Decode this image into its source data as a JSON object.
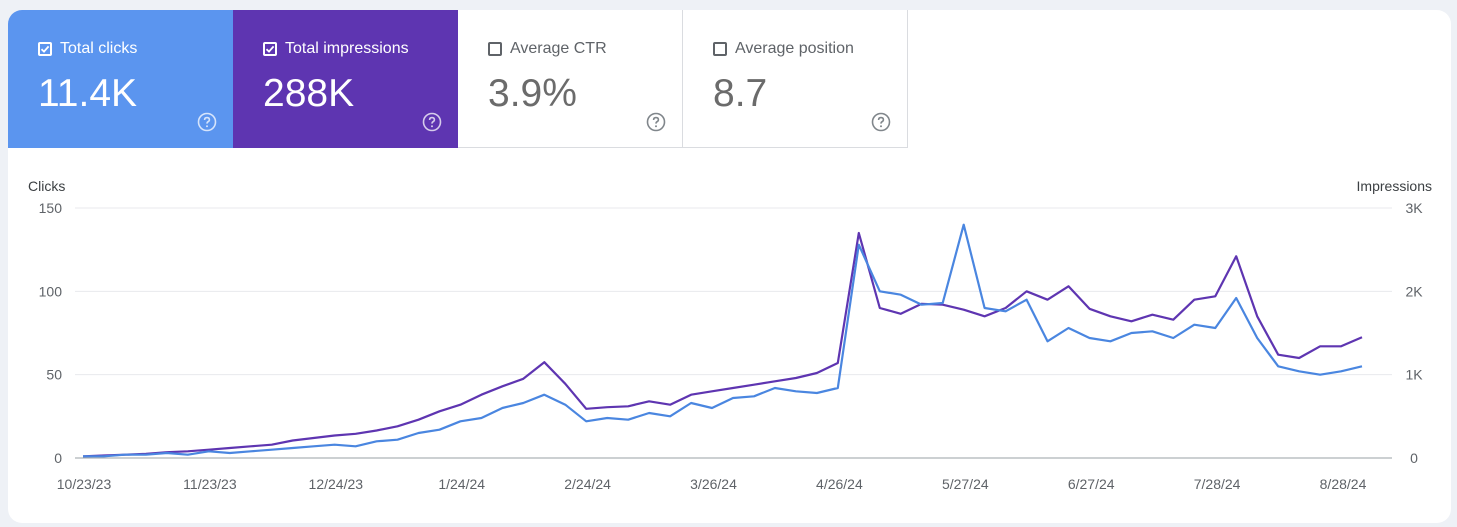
{
  "metrics": [
    {
      "label": "Total clicks",
      "value": "11.4K",
      "checked": true,
      "color": "#5b95ef"
    },
    {
      "label": "Total impressions",
      "value": "288K",
      "checked": true,
      "color": "#5e35b1"
    },
    {
      "label": "Average CTR",
      "value": "3.9%",
      "checked": false,
      "color": "#ffffff"
    },
    {
      "label": "Average position",
      "value": "8.7",
      "checked": false,
      "color": "#ffffff"
    }
  ],
  "chart_data": {
    "type": "line",
    "left_axis": {
      "title": "Clicks",
      "ticks": [
        "150",
        "100",
        "50",
        "0"
      ],
      "range": [
        0,
        150
      ]
    },
    "right_axis": {
      "title": "Impressions",
      "ticks": [
        "3K",
        "2K",
        "1K",
        "0"
      ],
      "range": [
        0,
        3000
      ]
    },
    "x_ticks": [
      "10/23/23",
      "11/23/23",
      "12/24/23",
      "1/24/24",
      "2/24/24",
      "3/26/24",
      "4/26/24",
      "5/27/24",
      "6/27/24",
      "7/28/24",
      "8/28/24"
    ],
    "grid": true,
    "series": [
      {
        "name": "Clicks",
        "axis": "left",
        "color": "#4a86e0",
        "points": [
          [
            0,
            1
          ],
          [
            7,
            1
          ],
          [
            14,
            2
          ],
          [
            21,
            2
          ],
          [
            28,
            3
          ],
          [
            35,
            2
          ],
          [
            42,
            4
          ],
          [
            49,
            3
          ],
          [
            56,
            4
          ],
          [
            63,
            5
          ],
          [
            70,
            6
          ],
          [
            77,
            7
          ],
          [
            84,
            8
          ],
          [
            91,
            7
          ],
          [
            98,
            10
          ],
          [
            105,
            11
          ],
          [
            112,
            15
          ],
          [
            119,
            17
          ],
          [
            126,
            22
          ],
          [
            133,
            24
          ],
          [
            140,
            30
          ],
          [
            147,
            33
          ],
          [
            154,
            38
          ],
          [
            161,
            32
          ],
          [
            168,
            22
          ],
          [
            175,
            24
          ],
          [
            182,
            23
          ],
          [
            189,
            27
          ],
          [
            196,
            25
          ],
          [
            203,
            33
          ],
          [
            210,
            30
          ],
          [
            217,
            36
          ],
          [
            224,
            37
          ],
          [
            231,
            42
          ],
          [
            238,
            40
          ],
          [
            245,
            39
          ],
          [
            252,
            42
          ],
          [
            259,
            128
          ],
          [
            266,
            100
          ],
          [
            273,
            98
          ],
          [
            280,
            92
          ],
          [
            287,
            93
          ],
          [
            294,
            140
          ],
          [
            301,
            90
          ],
          [
            308,
            88
          ],
          [
            315,
            95
          ],
          [
            322,
            70
          ],
          [
            329,
            78
          ],
          [
            336,
            72
          ],
          [
            343,
            70
          ],
          [
            350,
            75
          ],
          [
            357,
            76
          ],
          [
            364,
            72
          ],
          [
            371,
            80
          ],
          [
            378,
            78
          ],
          [
            385,
            96
          ],
          [
            392,
            72
          ],
          [
            399,
            55
          ],
          [
            406,
            52
          ],
          [
            413,
            50
          ],
          [
            420,
            52
          ],
          [
            427,
            55
          ]
        ]
      },
      {
        "name": "Impressions",
        "axis": "right",
        "color": "#5e35b1",
        "points": [
          [
            0,
            20
          ],
          [
            7,
            30
          ],
          [
            14,
            40
          ],
          [
            21,
            50
          ],
          [
            28,
            70
          ],
          [
            35,
            80
          ],
          [
            42,
            100
          ],
          [
            49,
            120
          ],
          [
            56,
            140
          ],
          [
            63,
            160
          ],
          [
            70,
            210
          ],
          [
            77,
            240
          ],
          [
            84,
            270
          ],
          [
            91,
            290
          ],
          [
            98,
            330
          ],
          [
            105,
            380
          ],
          [
            112,
            460
          ],
          [
            119,
            560
          ],
          [
            126,
            640
          ],
          [
            133,
            760
          ],
          [
            140,
            860
          ],
          [
            147,
            950
          ],
          [
            154,
            1150
          ],
          [
            161,
            890
          ],
          [
            168,
            590
          ],
          [
            175,
            610
          ],
          [
            182,
            620
          ],
          [
            189,
            680
          ],
          [
            196,
            640
          ],
          [
            203,
            760
          ],
          [
            210,
            800
          ],
          [
            217,
            840
          ],
          [
            224,
            880
          ],
          [
            231,
            920
          ],
          [
            238,
            960
          ],
          [
            245,
            1020
          ],
          [
            252,
            1140
          ],
          [
            259,
            2700
          ],
          [
            266,
            1800
          ],
          [
            273,
            1730
          ],
          [
            280,
            1850
          ],
          [
            287,
            1840
          ],
          [
            294,
            1780
          ],
          [
            301,
            1700
          ],
          [
            308,
            1800
          ],
          [
            315,
            2000
          ],
          [
            322,
            1900
          ],
          [
            329,
            2060
          ],
          [
            336,
            1790
          ],
          [
            343,
            1700
          ],
          [
            350,
            1640
          ],
          [
            357,
            1720
          ],
          [
            364,
            1660
          ],
          [
            371,
            1900
          ],
          [
            378,
            1940
          ],
          [
            385,
            2420
          ],
          [
            392,
            1700
          ],
          [
            399,
            1240
          ],
          [
            406,
            1200
          ],
          [
            413,
            1340
          ],
          [
            420,
            1340
          ],
          [
            427,
            1450
          ]
        ]
      }
    ]
  }
}
